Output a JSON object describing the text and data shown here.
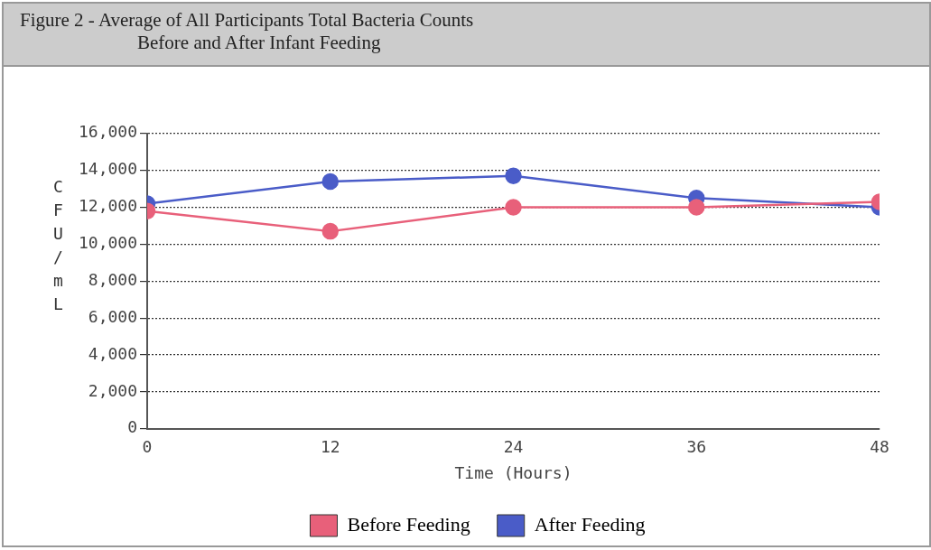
{
  "chart_data": {
    "type": "line",
    "title": "Figure 2 - Average of All Participants Total Bacteria Counts",
    "subtitle": "Before and After Infant Feeding",
    "xlabel": "Time (Hours)",
    "ylabel": "CFU/mL",
    "x": [
      0,
      12,
      24,
      36,
      48
    ],
    "xlim": [
      0,
      48
    ],
    "xticks": [
      0,
      12,
      24,
      36,
      48
    ],
    "ylim": [
      0,
      16000
    ],
    "yticks": [
      {
        "value": 0,
        "label": "0"
      },
      {
        "value": 2000,
        "label": "2,000"
      },
      {
        "value": 4000,
        "label": "4,000"
      },
      {
        "value": 6000,
        "label": "6,000"
      },
      {
        "value": 8000,
        "label": "8,000"
      },
      {
        "value": 10000,
        "label": "10,000"
      },
      {
        "value": 12000,
        "label": "12,000"
      },
      {
        "value": 14000,
        "label": "14,000"
      },
      {
        "value": 16000,
        "label": "16,000"
      }
    ],
    "series": [
      {
        "name": "Before Feeding",
        "color": "#e8607a",
        "values": [
          11800,
          10700,
          12000,
          12000,
          12300
        ]
      },
      {
        "name": "After Feeding",
        "color": "#4a5cc8",
        "values": [
          12200,
          13400,
          13700,
          12500,
          12000
        ]
      }
    ],
    "grid": "y",
    "legend": "bottom",
    "marker": "circle",
    "line_style": "solid"
  }
}
